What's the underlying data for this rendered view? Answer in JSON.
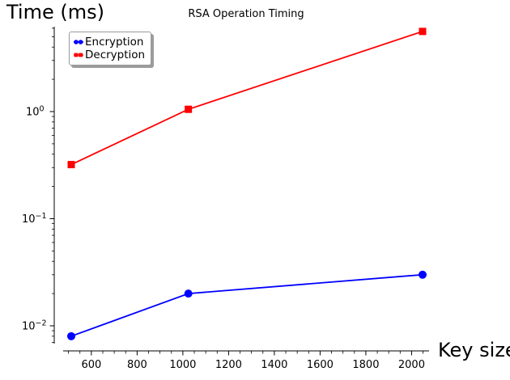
{
  "header": {
    "y_axis_label": "Time (ms)",
    "title": "RSA Operation Timing",
    "x_axis_label": "Key size"
  },
  "chart_data": {
    "type": "line",
    "title": "RSA Operation Timing",
    "xlabel": "Key size",
    "ylabel": "Time (ms)",
    "x_scale": "linear",
    "y_scale": "log",
    "xlim": [
      475,
      2080
    ],
    "ylim": [
      0.0068,
      6.3
    ],
    "grid": false,
    "x": [
      512,
      1024,
      2048
    ],
    "series": [
      {
        "name": "Encryption",
        "color": "#0000ff",
        "marker": "circle",
        "values": [
          0.008,
          0.02,
          0.03
        ]
      },
      {
        "name": "Decryption",
        "color": "#ff0000",
        "marker": "square",
        "values": [
          0.32,
          1.05,
          5.6
        ]
      }
    ],
    "x_major_ticks": [
      600,
      800,
      1000,
      1200,
      1400,
      1600,
      1800,
      2000
    ],
    "x_minor_tick_step": 50,
    "y_major_ticks": [
      {
        "value": 1,
        "base": "10",
        "exponent": "0"
      },
      {
        "value": 0.1,
        "base": "10",
        "exponent": "−1"
      },
      {
        "value": 0.01,
        "base": "10",
        "exponent": "−2"
      }
    ],
    "legend": {
      "position": "upper left"
    }
  }
}
